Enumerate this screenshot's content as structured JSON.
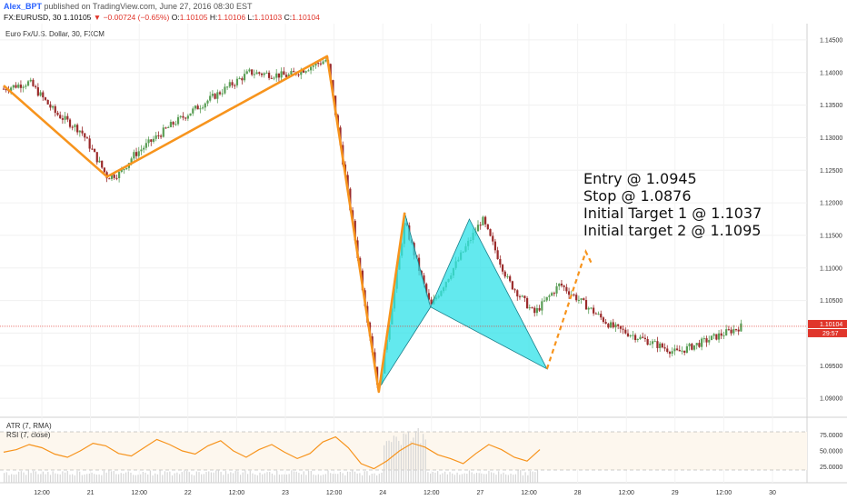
{
  "header": {
    "author": "Alex_BPT",
    "published_text": "published on TradingView.com, June 27, 2016 08:30 EST",
    "symbol": "FX:EURUSD, 30",
    "last": "1.10105",
    "change_arrow": "▼",
    "change": "−0.00724 (−0.65%)",
    "open_label": "O:",
    "open": "1.10105",
    "high_label": "H:",
    "high": "1.10106",
    "low_label": "L:",
    "low": "1.10103",
    "close_label": "C:",
    "close": "1.10104"
  },
  "chart_data": {
    "type": "line",
    "title": "Euro Fx/U.S. Dollar, 30, FXCM",
    "price_axis_ticks": [
      "1.14500",
      "1.14000",
      "1.13500",
      "1.13000",
      "1.12500",
      "1.12000",
      "1.11500",
      "1.11000",
      "1.10500",
      "1.10000",
      "1.09500",
      "1.09000"
    ],
    "ylim": [
      1.0875,
      1.1475
    ],
    "time_axis_ticks": [
      "12:00",
      "21",
      "12:00",
      "22",
      "12:00",
      "23",
      "12:00",
      "24",
      "12:00",
      "27",
      "12:00",
      "28",
      "12:00",
      "29",
      "12:00",
      "30"
    ],
    "current_price_label": "1.10104",
    "countdown_label": "29:57",
    "current_price": 1.10104,
    "series": [
      {
        "values_x": [
          0,
          2,
          4,
          6,
          8,
          9,
          10,
          13,
          16,
          19,
          22,
          25,
          29,
          31,
          33,
          37,
          39,
          41,
          43,
          47,
          52,
          57
        ],
        "values_y": [
          1.1375,
          1.1385,
          1.1338,
          1.131,
          1.124,
          1.1245,
          1.1272,
          1.132,
          1.136,
          1.14,
          1.1395,
          1.142,
          1.091,
          1.117,
          1.104,
          1.1175,
          1.108,
          1.103,
          1.1075,
          1.101,
          1.097,
          1.101
        ]
      }
    ],
    "zigzag": {
      "x": [
        0,
        8,
        25,
        29,
        31
      ],
      "y": [
        1.138,
        1.124,
        1.1425,
        1.091,
        1.1185
      ]
    },
    "pattern_points": {
      "x": [
        29,
        31,
        33,
        36,
        42
      ],
      "y": [
        1.0915,
        1.1185,
        1.104,
        1.1175,
        1.0945
      ]
    },
    "projection": {
      "x": [
        42,
        45,
        45.5
      ],
      "y": [
        1.0945,
        1.1125,
        1.1105
      ]
    },
    "annotations": [
      "Entry @ 1.0945",
      "Stop @ 1.0876",
      "Initial Target 1 @ 1.1037",
      "Initial target 2 @ 1.1095"
    ],
    "indicator_labels": [
      "ATR (7, RMA)",
      "RSI (7, close)"
    ],
    "rsi_axis_ticks": [
      "75.0000",
      "50.0000",
      "25.0000"
    ],
    "rsi_levels": [
      80,
      20
    ],
    "rsi_values": [
      48,
      52,
      60,
      55,
      45,
      40,
      50,
      62,
      58,
      46,
      42,
      55,
      68,
      60,
      50,
      45,
      58,
      66,
      50,
      40,
      52,
      60,
      48,
      38,
      46,
      64,
      72,
      55,
      30,
      22,
      34,
      50,
      62,
      56,
      44,
      38,
      30,
      46,
      60,
      52,
      40,
      34,
      52
    ],
    "colors": {
      "accent_orange": "#f7941d",
      "pattern_fill": "#2fe1e8",
      "up_candle": "#5a9e56",
      "down_candle": "#9b2b2b",
      "current_price_line": "#e0352b"
    }
  }
}
